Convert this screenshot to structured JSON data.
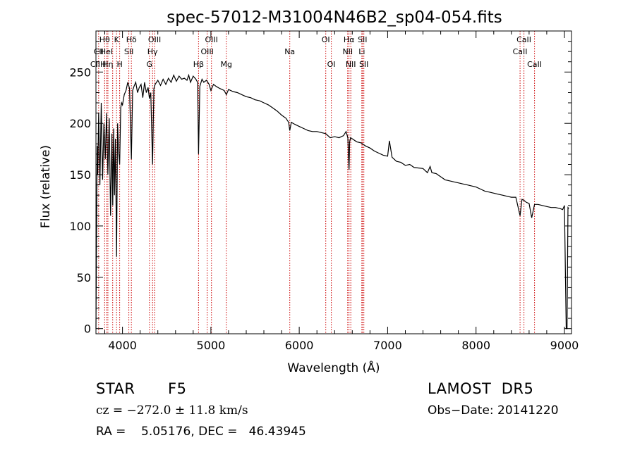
{
  "chart_data": {
    "type": "line",
    "title": "spec-57012-M31004N46B2_sp04-054.fits",
    "xlabel": "Wavelength (Å)",
    "ylabel": "Flux (relative)",
    "xlim": [
      3700,
      9080
    ],
    "ylim": [
      -5,
      290
    ],
    "xticks": [
      4000,
      5000,
      6000,
      7000,
      8000,
      9000
    ],
    "yticks": [
      0,
      50,
      100,
      150,
      200,
      250
    ],
    "grid": false,
    "line_color": "#000000",
    "marker_color": "#cc0000",
    "series": [
      {
        "x": [
          3700,
          3705,
          3710,
          3715,
          3720,
          3730,
          3745,
          3760,
          3775,
          3790,
          3805,
          3820,
          3835,
          3850,
          3865,
          3880,
          3890,
          3900,
          3910,
          3920,
          3933,
          3945,
          3955,
          3968,
          3980,
          3990,
          4000,
          4020,
          4040,
          4060,
          4080,
          4101,
          4115,
          4130,
          4150,
          4170,
          4190,
          4210,
          4230,
          4250,
          4270,
          4290,
          4305,
          4320,
          4340,
          4355,
          4370,
          4400,
          4430,
          4460,
          4490,
          4520,
          4550,
          4580,
          4610,
          4640,
          4670,
          4700,
          4730,
          4750,
          4770,
          4800,
          4830,
          4850,
          4861,
          4875,
          4900,
          4920,
          4950,
          4980,
          5000,
          5030,
          5060,
          5100,
          5150,
          5175,
          5200,
          5250,
          5300,
          5350,
          5400,
          5450,
          5500,
          5550,
          5600,
          5650,
          5700,
          5750,
          5800,
          5850,
          5880,
          5893,
          5910,
          5950,
          6000,
          6050,
          6100,
          6150,
          6200,
          6250,
          6300,
          6350,
          6400,
          6450,
          6500,
          6530,
          6550,
          6563,
          6570,
          6580,
          6600,
          6650,
          6700,
          6750,
          6800,
          6850,
          6900,
          6950,
          7000,
          7020,
          7050,
          7100,
          7150,
          7200,
          7250,
          7300,
          7400,
          7450,
          7480,
          7500,
          7550,
          7600,
          7650,
          7700,
          7750,
          7800,
          7850,
          7900,
          7950,
          8000,
          8050,
          8100,
          8150,
          8200,
          8250,
          8300,
          8350,
          8400,
          8450,
          8498,
          8520,
          8542,
          8570,
          8600,
          8630,
          8662,
          8700,
          8750,
          8800,
          8850,
          8900,
          8950,
          8980,
          9000,
          9020,
          9030,
          9040,
          9050
        ],
        "values": [
          0,
          70,
          138,
          178,
          150,
          210,
          140,
          220,
          145,
          200,
          165,
          210,
          150,
          205,
          110,
          190,
          120,
          195,
          130,
          185,
          70,
          200,
          175,
          160,
          215,
          220,
          218,
          228,
          232,
          240,
          234,
          165,
          232,
          236,
          240,
          230,
          235,
          238,
          225,
          240,
          230,
          235,
          224,
          230,
          160,
          234,
          238,
          242,
          237,
          243,
          238,
          244,
          240,
          247,
          241,
          246,
          243,
          244,
          242,
          247,
          240,
          246,
          243,
          240,
          170,
          236,
          243,
          240,
          242,
          238,
          232,
          238,
          236,
          234,
          232,
          228,
          233,
          231,
          230,
          228,
          226,
          225,
          223,
          222,
          220,
          218,
          215,
          212,
          208,
          205,
          201,
          193,
          201,
          199,
          197,
          195,
          193,
          192,
          192,
          191,
          190,
          186,
          187,
          186,
          188,
          192,
          186,
          155,
          182,
          186,
          185,
          182,
          181,
          178,
          176,
          173,
          171,
          169,
          168,
          183,
          167,
          163,
          162,
          159,
          160,
          157,
          156,
          152,
          158,
          152,
          151,
          148,
          145,
          144,
          143,
          142,
          141,
          140,
          139,
          138,
          136,
          134,
          133,
          132,
          131,
          130,
          129,
          128,
          128,
          110,
          126,
          125,
          123,
          122,
          108,
          121,
          121,
          120,
          119,
          118,
          118,
          117,
          116,
          120,
          0,
          0,
          118,
          117
        ]
      }
    ],
    "line_labels": [
      {
        "rows": [
          "Hθ",
          "CII",
          "CIIH"
        ],
        "x": [
          3798,
          3730,
          3725
        ]
      },
      {
        "rows": [
          "K",
          "HeI",
          "Hη"
        ],
        "x": [
          3933,
          3820,
          3835
        ]
      },
      {
        "rows": [
          "Hδ",
          "SII",
          "H"
        ],
        "x": [
          4101,
          4072,
          3968
        ]
      },
      {
        "rows": [
          "OIII",
          "Hγ",
          "G"
        ],
        "x": [
          4363,
          4340,
          4305
        ]
      },
      {
        "rows": [
          "OIII",
          "OIII",
          "Hβ"
        ],
        "x": [
          5007,
          4959,
          4861
        ]
      },
      {
        "rows": [
          "",
          "",
          "Mg"
        ],
        "x": [
          5175,
          5175,
          5175
        ]
      },
      {
        "rows": [
          "",
          "Na",
          ""
        ],
        "x": [
          5893,
          5893,
          5893
        ]
      },
      {
        "rows": [
          "OI",
          "",
          "OI"
        ],
        "x": [
          6300,
          6363,
          6363
        ]
      },
      {
        "rows": [
          "Hα",
          "NII",
          "NII"
        ],
        "x": [
          6563,
          6548,
          6583
        ]
      },
      {
        "rows": [
          "SII",
          "Li",
          "SII"
        ],
        "x": [
          6716,
          6708,
          6731
        ]
      },
      {
        "rows": [
          "CaII",
          "CaII",
          "CaII"
        ],
        "x": [
          8542,
          8498,
          8662
        ]
      }
    ],
    "marker_lines": [
      3730,
      3798,
      3820,
      3835,
      3889,
      3933,
      3968,
      4072,
      4101,
      4305,
      4340,
      4363,
      4861,
      4959,
      5007,
      5175,
      5893,
      6300,
      6363,
      6548,
      6563,
      6583,
      6708,
      6716,
      6731,
      8498,
      8542,
      8662
    ]
  },
  "footer": {
    "class": "STAR",
    "subclass": "F5",
    "survey": "LAMOST  DR5",
    "cz": "cz = −272.0 ± 11.8 km/s",
    "obs_date": "Obs−Date: 20141220",
    "radec": "RA =    5.05176, DEC =   46.43945"
  }
}
